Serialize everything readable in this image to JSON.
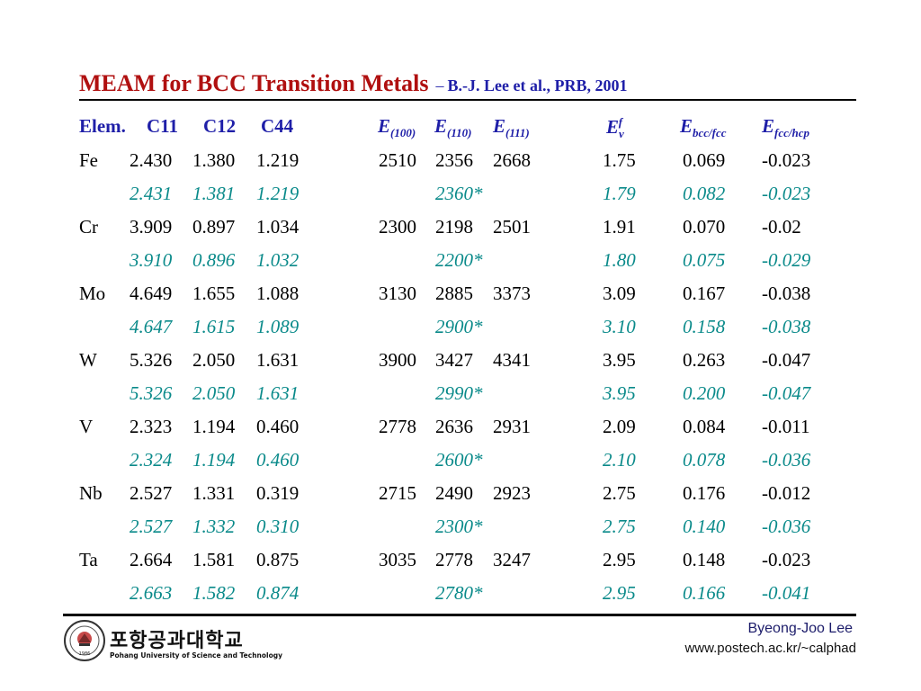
{
  "title": {
    "main": "MEAM for BCC Transition Metals",
    "dash": "–",
    "citation": "B.-J. Lee et al., PRB, 2001"
  },
  "table": {
    "headers": {
      "elem": "Elem.",
      "c11": "C11",
      "c12": "C12",
      "c44": "C44",
      "e100_base": "E",
      "e100_sub": "(100)",
      "e110_base": "E",
      "e110_sub": "(110)",
      "e111_base": "E",
      "e111_sub": "(111)",
      "ev_base": "E",
      "ev_sub": "v",
      "ev_sup": "f",
      "ebcc_base": "E",
      "ebcc_sub": "bcc/fcc",
      "efcc_base": "E",
      "efcc_sub": "fcc/hcp"
    },
    "rows": [
      {
        "elem": "Fe",
        "exp": {
          "c11": "2.430",
          "c12": "1.380",
          "c44": "1.219",
          "e100": "2510",
          "e110": "2356",
          "e111": "2668",
          "ev": "1.75",
          "ebcc": "0.069",
          "efcc": "-0.023"
        },
        "calc": {
          "c11": "2.431",
          "c12": "1.381",
          "c44": "1.219",
          "e110": "2360*",
          "ev": "1.79",
          "ebcc": "0.082",
          "efcc": "-0.023"
        }
      },
      {
        "elem": "Cr",
        "exp": {
          "c11": "3.909",
          "c12": "0.897",
          "c44": "1.034",
          "e100": "2300",
          "e110": "2198",
          "e111": "2501",
          "ev": "1.91",
          "ebcc": "0.070",
          "efcc": "-0.02"
        },
        "calc": {
          "c11": "3.910",
          "c12": "0.896",
          "c44": "1.032",
          "e110": "2200*",
          "ev": "1.80",
          "ebcc": "0.075",
          "efcc": "-0.029"
        }
      },
      {
        "elem": "Mo",
        "exp": {
          "c11": "4.649",
          "c12": "1.655",
          "c44": "1.088",
          "e100": "3130",
          "e110": "2885",
          "e111": "3373",
          "ev": "3.09",
          "ebcc": "0.167",
          "efcc": "-0.038"
        },
        "calc": {
          "c11": "4.647",
          "c12": "1.615",
          "c44": "1.089",
          "e110": "2900*",
          "ev": "3.10",
          "ebcc": "0.158",
          "efcc": "-0.038"
        }
      },
      {
        "elem": "W",
        "exp": {
          "c11": "5.326",
          "c12": "2.050",
          "c44": "1.631",
          "e100": "3900",
          "e110": "3427",
          "e111": "4341",
          "ev": "3.95",
          "ebcc": "0.263",
          "efcc": "-0.047"
        },
        "calc": {
          "c11": "5.326",
          "c12": "2.050",
          "c44": "1.631",
          "e110": "2990*",
          "ev": "3.95",
          "ebcc": "0.200",
          "efcc": "-0.047"
        }
      },
      {
        "elem": "V",
        "exp": {
          "c11": "2.323",
          "c12": "1.194",
          "c44": "0.460",
          "e100": "2778",
          "e110": "2636",
          "e111": "2931",
          "ev": "2.09",
          "ebcc": "0.084",
          "efcc": "-0.011"
        },
        "calc": {
          "c11": "2.324",
          "c12": "1.194",
          "c44": "0.460",
          "e110": "2600*",
          "ev": "2.10",
          "ebcc": "0.078",
          "efcc": "-0.036"
        }
      },
      {
        "elem": "Nb",
        "exp": {
          "c11": "2.527",
          "c12": "1.331",
          "c44": "0.319",
          "e100": "2715",
          "e110": "2490",
          "e111": "2923",
          "ev": "2.75",
          "ebcc": "0.176",
          "efcc": "-0.012"
        },
        "calc": {
          "c11": "2.527",
          "c12": "1.332",
          "c44": "0.310",
          "e110": "2300*",
          "ev": "2.75",
          "ebcc": "0.140",
          "efcc": "-0.036"
        }
      },
      {
        "elem": "Ta",
        "exp": {
          "c11": "2.664",
          "c12": "1.581",
          "c44": "0.875",
          "e100": "3035",
          "e110": "2778",
          "e111": "3247",
          "ev": "2.95",
          "ebcc": "0.148",
          "efcc": "-0.023"
        },
        "calc": {
          "c11": "2.663",
          "c12": "1.582",
          "c44": "0.874",
          "e110": "2780*",
          "ev": "2.95",
          "ebcc": "0.166",
          "efcc": "-0.041"
        }
      }
    ]
  },
  "footer": {
    "logo_korean": "포항공과대학교",
    "logo_english": "Pohang University of Science and Technology",
    "logo_year": "1986",
    "author": "Byeong-Joo Lee",
    "url": "www.postech.ac.kr/~calphad"
  },
  "colors": {
    "title": "#b01010",
    "header": "#1f1fa8",
    "computed": "#0a8a8a",
    "text": "#000000"
  }
}
